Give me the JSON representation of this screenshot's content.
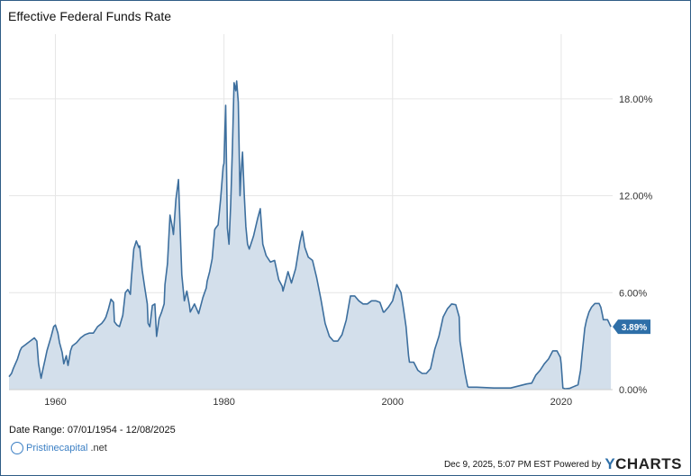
{
  "chart_data": {
    "type": "area",
    "title": "Effective Federal Funds Rate",
    "x_unit": "year",
    "xlim": [
      1954.5,
      2026.1
    ],
    "ylim": [
      0,
      22
    ],
    "xticks": [
      {
        "value": 1960,
        "label": "1960"
      },
      {
        "value": 1980,
        "label": "1980"
      },
      {
        "value": 2000,
        "label": "2000"
      },
      {
        "value": 2020,
        "label": "2020"
      }
    ],
    "yticks": [
      {
        "value": 0,
        "label": "0.00%"
      },
      {
        "value": 6,
        "label": "6.00%"
      },
      {
        "value": 12,
        "label": "12.00%"
      },
      {
        "value": 18,
        "label": "18.00%"
      }
    ],
    "grid": true,
    "last_value_label": "3.89%",
    "series": [
      {
        "x": [
          1954.5,
          1954.8,
          1955.0,
          1955.5,
          1955.8,
          1956.0,
          1956.5,
          1957.0,
          1957.5,
          1957.8,
          1958.0,
          1958.3,
          1958.5,
          1958.8,
          1959.0,
          1959.5,
          1959.8,
          1960.0,
          1960.3,
          1960.5,
          1960.8,
          1961.0,
          1961.3,
          1961.5,
          1961.8,
          1962.0,
          1962.5,
          1963.0,
          1963.5,
          1964.0,
          1964.5,
          1965.0,
          1965.5,
          1965.8,
          1966.0,
          1966.3,
          1966.6,
          1966.9,
          1967.0,
          1967.3,
          1967.6,
          1968.0,
          1968.3,
          1968.6,
          1968.9,
          1969.0,
          1969.3,
          1969.6,
          1969.9,
          1970.0,
          1970.3,
          1970.6,
          1970.9,
          1971.0,
          1971.2,
          1971.5,
          1971.8,
          1972.0,
          1972.3,
          1972.6,
          1972.9,
          1973.0,
          1973.3,
          1973.6,
          1973.9,
          1974.0,
          1974.3,
          1974.6,
          1974.9,
          1975.0,
          1975.3,
          1975.6,
          1975.9,
          1976.0,
          1976.5,
          1977.0,
          1977.5,
          1977.9,
          1978.0,
          1978.3,
          1978.6,
          1978.9,
          1979.0,
          1979.3,
          1979.6,
          1979.9,
          1980.0,
          1980.2,
          1980.4,
          1980.6,
          1980.8,
          1981.0,
          1981.2,
          1981.4,
          1981.5,
          1981.7,
          1981.9,
          1982.0,
          1982.2,
          1982.4,
          1982.6,
          1982.8,
          1983.0,
          1983.5,
          1984.0,
          1984.3,
          1984.6,
          1985.0,
          1985.5,
          1986.0,
          1986.5,
          1986.9,
          1987.0,
          1987.3,
          1987.6,
          1988.0,
          1988.5,
          1989.0,
          1989.3,
          1989.6,
          1990.0,
          1990.5,
          1991.0,
          1991.5,
          1992.0,
          1992.5,
          1993.0,
          1993.5,
          1994.0,
          1994.5,
          1995.0,
          1995.5,
          1996.0,
          1996.5,
          1997.0,
          1997.5,
          1998.0,
          1998.5,
          1998.9,
          1999.0,
          1999.5,
          2000.0,
          2000.5,
          2001.0,
          2001.3,
          2001.6,
          2001.9,
          2002.0,
          2002.5,
          2003.0,
          2003.5,
          2004.0,
          2004.5,
          2005.0,
          2005.5,
          2006.0,
          2006.5,
          2007.0,
          2007.5,
          2007.9,
          2008.0,
          2008.3,
          2008.6,
          2008.9,
          2009.0,
          2010.0,
          2012.0,
          2014.0,
          2015.9,
          2016.5,
          2017.0,
          2017.5,
          2018.0,
          2018.5,
          2019.0,
          2019.5,
          2019.9,
          2020.0,
          2020.2,
          2020.5,
          2021.0,
          2022.0,
          2022.3,
          2022.5,
          2022.8,
          2023.0,
          2023.3,
          2023.6,
          2024.0,
          2024.5,
          2024.7,
          2024.9,
          2025.0,
          2025.5,
          2025.9
        ],
        "y": [
          0.8,
          1.0,
          1.3,
          1.9,
          2.4,
          2.6,
          2.8,
          3.0,
          3.2,
          3.0,
          1.6,
          0.7,
          1.2,
          1.9,
          2.4,
          3.3,
          3.9,
          4.0,
          3.5,
          2.9,
          2.3,
          1.6,
          2.1,
          1.5,
          2.4,
          2.7,
          2.9,
          3.2,
          3.4,
          3.5,
          3.5,
          3.9,
          4.1,
          4.3,
          4.5,
          5.0,
          5.6,
          5.4,
          4.2,
          4.0,
          3.9,
          4.6,
          6.0,
          6.2,
          5.9,
          6.8,
          8.7,
          9.2,
          8.8,
          8.9,
          7.4,
          6.3,
          5.3,
          4.1,
          3.9,
          5.2,
          5.3,
          3.3,
          4.4,
          4.8,
          5.3,
          6.5,
          7.8,
          10.8,
          10.0,
          9.6,
          11.8,
          13.0,
          8.5,
          7.1,
          5.5,
          6.1,
          5.2,
          4.8,
          5.3,
          4.7,
          5.7,
          6.3,
          6.7,
          7.3,
          8.1,
          9.9,
          10.0,
          10.2,
          11.8,
          13.8,
          14.0,
          17.6,
          10.0,
          9.0,
          11.5,
          15.0,
          19.0,
          18.5,
          19.1,
          17.8,
          12.0,
          13.2,
          14.7,
          12.1,
          10.1,
          9.0,
          8.7,
          9.5,
          10.6,
          11.2,
          9.0,
          8.3,
          7.9,
          8.0,
          6.8,
          6.4,
          6.1,
          6.7,
          7.3,
          6.6,
          7.5,
          9.1,
          9.8,
          8.8,
          8.2,
          8.0,
          6.9,
          5.6,
          4.1,
          3.3,
          3.0,
          3.0,
          3.4,
          4.3,
          5.8,
          5.8,
          5.5,
          5.3,
          5.3,
          5.5,
          5.5,
          5.4,
          4.8,
          4.8,
          5.1,
          5.5,
          6.5,
          6.0,
          5.0,
          3.9,
          2.1,
          1.7,
          1.7,
          1.2,
          1.0,
          1.0,
          1.3,
          2.5,
          3.3,
          4.5,
          5.0,
          5.3,
          5.25,
          4.5,
          3.0,
          2.0,
          1.0,
          0.2,
          0.15,
          0.15,
          0.1,
          0.1,
          0.35,
          0.4,
          0.9,
          1.2,
          1.6,
          1.9,
          2.4,
          2.4,
          2.0,
          1.6,
          0.1,
          0.05,
          0.08,
          0.3,
          1.2,
          2.3,
          3.8,
          4.3,
          4.8,
          5.1,
          5.33,
          5.33,
          5.1,
          4.6,
          4.33,
          4.33,
          3.89
        ]
      }
    ]
  },
  "footer": {
    "date_range": "Date Range: 07/01/1954 - 12/08/2025",
    "timestamp": "Dec 9, 2025, 5:07 PM EST Powered by",
    "brand_y": "Y",
    "brand_rest": "CHARTS",
    "logo_text": "Pristinecapital",
    "logo_suffix": ".net"
  },
  "colors": {
    "line": "#3d6f9e",
    "fill": "#d3dfeb",
    "label_bg": "#2e6fa8",
    "grid": "#e6e6e6",
    "frame": "#2f5c86"
  }
}
